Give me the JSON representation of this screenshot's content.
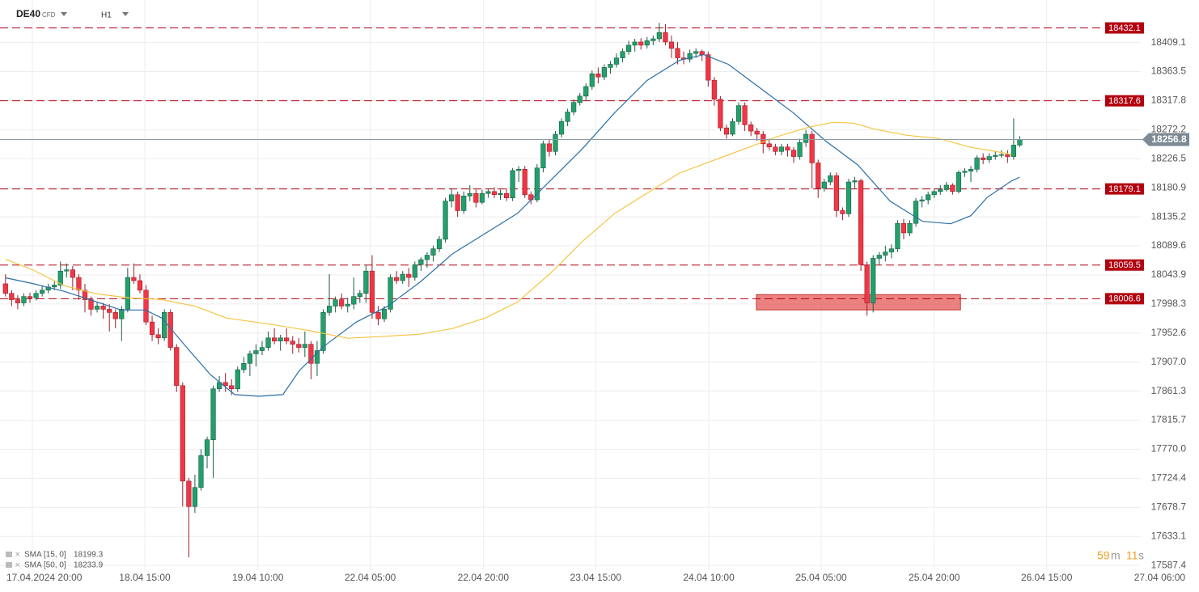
{
  "header": {
    "symbol": "DE40",
    "instrument": "CFD",
    "timeframe": "H1"
  },
  "timer": {
    "minutes": 59,
    "minutes_unit": "m",
    "seconds": 11,
    "seconds_unit": "s"
  },
  "chart_data": {
    "type": "candlestick",
    "up_color": "#22a06b",
    "down_color": "#f23645",
    "xlim": [
      -0.9,
      185.8
    ],
    "xticks": [
      {
        "value": 4.4,
        "label": "17.04.2024 20:00"
      },
      {
        "value": 22.8,
        "label": "18.04 15:00"
      },
      {
        "value": 41.3,
        "label": "19.04 10:00"
      },
      {
        "value": 59.7,
        "label": "22.04 05:00"
      },
      {
        "value": 78.2,
        "label": "22.04 20:00"
      },
      {
        "value": 96.6,
        "label": "23.04 15:00"
      },
      {
        "value": 115.1,
        "label": "24.04 10:00"
      },
      {
        "value": 133.5,
        "label": "25.04 05:00"
      },
      {
        "value": 152.0,
        "label": "25.04 20:00"
      },
      {
        "value": 170.4,
        "label": "26.04 15:00"
      },
      {
        "value": 188.9,
        "label": "27.04 06:00"
      }
    ],
    "ylim": [
      17580,
      18476
    ],
    "yticks": [
      18409.1,
      18363.5,
      18317.8,
      18272.2,
      18226.5,
      18180.9,
      18135.2,
      18089.6,
      18043.9,
      17998.3,
      17952.6,
      {
        "value": 17907,
        "label": "17907.0"
      },
      17861.3,
      17815.7,
      {
        "value": 17770,
        "label": "17770.0"
      },
      17724.4,
      17678.7,
      17633.1,
      17587.4
    ],
    "grid": true,
    "levels": [
      18432.1,
      18317.6,
      18179.1,
      18059.5,
      18006.6
    ],
    "level_color": "#b3000f",
    "last_price": 18256.8,
    "zone": {
      "x": [
        122.9,
        156.3
      ],
      "y": [
        17989,
        18013
      ]
    },
    "candles": [
      [
        18030,
        18045,
        18010,
        18015
      ],
      [
        18015,
        18020,
        17995,
        18005
      ],
      [
        18005,
        18012,
        17990,
        18000
      ],
      [
        18000,
        18015,
        17995,
        18010
      ],
      [
        18010,
        18016,
        18000,
        18008
      ],
      [
        18008,
        18020,
        18004,
        18015
      ],
      [
        18015,
        18026,
        18010,
        18020
      ],
      [
        18020,
        18030,
        18015,
        18025
      ],
      [
        18025,
        18034,
        18020,
        18028
      ],
      [
        18028,
        18065,
        18022,
        18050
      ],
      [
        18050,
        18062,
        18040,
        18052
      ],
      [
        18052,
        18058,
        18020,
        18040
      ],
      [
        18040,
        18045,
        18005,
        18020
      ],
      [
        18020,
        18030,
        17985,
        18005
      ],
      [
        18005,
        18010,
        17980,
        17990
      ],
      [
        17990,
        18002,
        17985,
        17995
      ],
      [
        17995,
        18000,
        17975,
        17990
      ],
      [
        17990,
        17998,
        17955,
        17985
      ],
      [
        17985,
        17990,
        17960,
        17975
      ],
      [
        17975,
        17995,
        17940,
        17990
      ],
      [
        17990,
        18055,
        17985,
        18040
      ],
      [
        18040,
        18062,
        18030,
        18035
      ],
      [
        18035,
        18045,
        18015,
        18020
      ],
      [
        18020,
        18028,
        17965,
        17970
      ],
      [
        17970,
        17980,
        17940,
        17950
      ],
      [
        17950,
        17960,
        17935,
        17945
      ],
      [
        17945,
        17990,
        17940,
        17985
      ],
      [
        17985,
        17990,
        17925,
        17930
      ],
      [
        17930,
        17935,
        17860,
        17870
      ],
      [
        17870,
        17875,
        17680,
        17720
      ],
      [
        17720,
        17725,
        17600,
        17680
      ],
      [
        17680,
        17730,
        17670,
        17710
      ],
      [
        17710,
        17770,
        17705,
        17760
      ],
      [
        17760,
        17790,
        17740,
        17785
      ],
      [
        17785,
        17870,
        17725,
        17865
      ],
      [
        17865,
        17885,
        17860,
        17875
      ],
      [
        17875,
        17890,
        17860,
        17870
      ],
      [
        17870,
        17880,
        17855,
        17865
      ],
      [
        17865,
        17900,
        17860,
        17895
      ],
      [
        17895,
        17915,
        17890,
        17905
      ],
      [
        17905,
        17925,
        17885,
        17920
      ],
      [
        17920,
        17935,
        17900,
        17925
      ],
      [
        17925,
        17940,
        17918,
        17930
      ],
      [
        17930,
        17955,
        17925,
        17945
      ],
      [
        17945,
        17960,
        17935,
        17940
      ],
      [
        17940,
        17950,
        17925,
        17945
      ],
      [
        17945,
        17960,
        17935,
        17940
      ],
      [
        17940,
        17948,
        17920,
        17935
      ],
      [
        17935,
        17945,
        17922,
        17930
      ],
      [
        17930,
        17955,
        17915,
        17935
      ],
      [
        17935,
        17940,
        17880,
        17905
      ],
      [
        17905,
        17940,
        17885,
        17925
      ],
      [
        17925,
        17990,
        17920,
        17985
      ],
      [
        17985,
        18045,
        17980,
        17995
      ],
      [
        17995,
        18010,
        17985,
        18005
      ],
      [
        18005,
        18015,
        17990,
        17995
      ],
      [
        17995,
        18008,
        17985,
        17998
      ],
      [
        17998,
        18040,
        17990,
        18010
      ],
      [
        18010,
        18020,
        18000,
        18015
      ],
      [
        18015,
        18060,
        18000,
        18050
      ],
      [
        18050,
        18075,
        17975,
        17985
      ],
      [
        17985,
        17995,
        17965,
        17975
      ],
      [
        17975,
        17995,
        17970,
        17990
      ],
      [
        17990,
        18045,
        17985,
        18040
      ],
      [
        18040,
        18050,
        18030,
        18035
      ],
      [
        18035,
        18050,
        18030,
        18045
      ],
      [
        18045,
        18055,
        18025,
        18040
      ],
      [
        18040,
        18065,
        18035,
        18060
      ],
      [
        18060,
        18072,
        18050,
        18068
      ],
      [
        18068,
        18080,
        18055,
        18075
      ],
      [
        18075,
        18090,
        18065,
        18085
      ],
      [
        18085,
        18105,
        18080,
        18100
      ],
      [
        18100,
        18165,
        18095,
        18160
      ],
      [
        18160,
        18180,
        18150,
        18170
      ],
      [
        18170,
        18175,
        18135,
        18145
      ],
      [
        18145,
        18175,
        18140,
        18168
      ],
      [
        18168,
        18185,
        18160,
        18172
      ],
      [
        18172,
        18178,
        18150,
        18158
      ],
      [
        18158,
        18178,
        18155,
        18172
      ],
      [
        18172,
        18180,
        18165,
        18175
      ],
      [
        18175,
        18182,
        18165,
        18170
      ],
      [
        18170,
        18178,
        18162,
        18172
      ],
      [
        18172,
        18180,
        18160,
        18165
      ],
      [
        18165,
        18212,
        18160,
        18208
      ],
      [
        18208,
        18215,
        18190,
        18210
      ],
      [
        18210,
        18215,
        18165,
        18170
      ],
      [
        18170,
        18175,
        18155,
        18162
      ],
      [
        18162,
        18218,
        18158,
        18212
      ],
      [
        18212,
        18255,
        18205,
        18250
      ],
      [
        18250,
        18258,
        18230,
        18238
      ],
      [
        18238,
        18270,
        18232,
        18265
      ],
      [
        18265,
        18290,
        18260,
        18285
      ],
      [
        18285,
        18305,
        18278,
        18300
      ],
      [
        18300,
        18320,
        18295,
        18315
      ],
      [
        18315,
        18330,
        18310,
        18325
      ],
      [
        18325,
        18345,
        18318,
        18340
      ],
      [
        18340,
        18365,
        18335,
        18360
      ],
      [
        18360,
        18370,
        18345,
        18355
      ],
      [
        18355,
        18375,
        18350,
        18370
      ],
      [
        18370,
        18380,
        18360,
        18375
      ],
      [
        18375,
        18392,
        18370,
        18385
      ],
      [
        18385,
        18400,
        18378,
        18395
      ],
      [
        18395,
        18412,
        18390,
        18405
      ],
      [
        18405,
        18415,
        18395,
        18410
      ],
      [
        18410,
        18416,
        18398,
        18405
      ],
      [
        18405,
        18418,
        18400,
        18412
      ],
      [
        18412,
        18420,
        18405,
        18415
      ],
      [
        18415,
        18440,
        18410,
        18425
      ],
      [
        18425,
        18438,
        18405,
        18410
      ],
      [
        18410,
        18420,
        18385,
        18400
      ],
      [
        18400,
        18410,
        18375,
        18385
      ],
      [
        18385,
        18395,
        18375,
        18383
      ],
      [
        18383,
        18398,
        18378,
        18392
      ],
      [
        18392,
        18400,
        18385,
        18395
      ],
      [
        18395,
        18398,
        18380,
        18390
      ],
      [
        18390,
        18395,
        18340,
        18350
      ],
      [
        18350,
        18355,
        18310,
        18320
      ],
      [
        18320,
        18325,
        18270,
        18275
      ],
      [
        18275,
        18280,
        18258,
        18265
      ],
      [
        18265,
        18290,
        18262,
        18285
      ],
      [
        18285,
        18315,
        18280,
        18310
      ],
      [
        18310,
        18315,
        18270,
        18280
      ],
      [
        18280,
        18285,
        18262,
        18270
      ],
      [
        18270,
        18275,
        18255,
        18265
      ],
      [
        18265,
        18270,
        18235,
        18250
      ],
      [
        18250,
        18258,
        18240,
        18245
      ],
      [
        18245,
        18250,
        18232,
        18238
      ],
      [
        18238,
        18250,
        18232,
        18245
      ],
      [
        18245,
        18250,
        18230,
        18240
      ],
      [
        18240,
        18245,
        18220,
        18230
      ],
      [
        18230,
        18258,
        18225,
        18252
      ],
      [
        18252,
        18272,
        18245,
        18265
      ],
      [
        18265,
        18270,
        18180,
        18220
      ],
      [
        18220,
        18225,
        18165,
        18180
      ],
      [
        18180,
        18195,
        18175,
        18190
      ],
      [
        18190,
        18205,
        18185,
        18200
      ],
      [
        18200,
        18205,
        18135,
        18145
      ],
      [
        18145,
        18150,
        18130,
        18140
      ],
      [
        18140,
        18195,
        18135,
        18190
      ],
      [
        18190,
        18198,
        18180,
        18192
      ],
      [
        18192,
        18195,
        18050,
        18060
      ],
      [
        18060,
        18065,
        17980,
        18000
      ],
      [
        18000,
        18075,
        17985,
        18070
      ],
      [
        18070,
        18080,
        18060,
        18075
      ],
      [
        18075,
        18090,
        18065,
        18080
      ],
      [
        18080,
        18092,
        18070,
        18085
      ],
      [
        18085,
        18130,
        18080,
        18125
      ],
      [
        18125,
        18132,
        18100,
        18110
      ],
      [
        18110,
        18130,
        18105,
        18125
      ],
      [
        18125,
        18165,
        18120,
        18160
      ],
      [
        18160,
        18168,
        18150,
        18162
      ],
      [
        18162,
        18175,
        18155,
        18170
      ],
      [
        18170,
        18180,
        18165,
        18175
      ],
      [
        18175,
        18185,
        18170,
        18178
      ],
      [
        18178,
        18190,
        18175,
        18185
      ],
      [
        18185,
        18188,
        18170,
        18175
      ],
      [
        18175,
        18208,
        18172,
        18205
      ],
      [
        18205,
        18212,
        18198,
        18207
      ],
      [
        18207,
        18215,
        18190,
        18210
      ],
      [
        18210,
        18232,
        18205,
        18228
      ],
      [
        18228,
        18235,
        18218,
        18225
      ],
      [
        18225,
        18235,
        18220,
        18230
      ],
      [
        18230,
        18238,
        18225,
        18232
      ],
      [
        18232,
        18240,
        18228,
        18233
      ],
      [
        18233,
        18240,
        18220,
        18230
      ],
      [
        18230,
        18290,
        18225,
        18248
      ],
      [
        18248,
        18262,
        18245,
        18256.8
      ]
    ],
    "series": [
      {
        "name": "SMA [15, 0]",
        "last_value": 18199.3,
        "color": "#2b6fa8",
        "x": [
          0,
          4.4,
          9.7,
          15.0,
          18.9,
          22.9,
          25.6,
          29.5,
          33.5,
          37.5,
          41.5,
          45.4,
          48.1,
          52.1,
          57.4,
          62.6,
          67.9,
          73.2,
          78.5,
          83.8,
          89.1,
          94.4,
          99.7,
          105.0,
          110.3,
          114.3,
          118.3,
          123.6,
          128.9,
          134.2,
          139.5,
          144.8,
          150.1,
          154.7,
          158.0,
          160.7,
          164.6,
          166.0
        ],
        "values": [
          18039.4,
          18030.5,
          18017.9,
          18001.4,
          17988.8,
          17988.8,
          17976.1,
          17931.8,
          17887.5,
          17855.9,
          17853.3,
          17855.9,
          17893.8,
          17931.8,
          17969.8,
          17995.1,
          18033.1,
          18077.4,
          18109.1,
          18140.7,
          18191.5,
          18241.9,
          18299.0,
          18349.6,
          18381.2,
          18390.1,
          18374.9,
          18336.9,
          18299.0,
          18254.7,
          18216.7,
          18159.7,
          18128.1,
          18124.3,
          18137.0,
          18166.0,
          18191.5,
          18197.7
        ]
      },
      {
        "name": "SMA [50, 0]",
        "last_value": 18233.9,
        "color": "#f5c542",
        "x": [
          0,
          4.4,
          9.7,
          15.0,
          20.3,
          25.6,
          30.9,
          36.2,
          42.8,
          49.4,
          56.0,
          61.3,
          67.9,
          73.2,
          78.5,
          83.8,
          89.1,
          94.4,
          99.7,
          105.0,
          110.3,
          115.6,
          120.9,
          126.2,
          131.5,
          135.5,
          138.8,
          142.1,
          147.4,
          152.7,
          158.0,
          162.0,
          164.6
        ],
        "values": [
          18068.5,
          18052.1,
          18026.8,
          18014.1,
          18007.8,
          18005.2,
          17995.1,
          17976.1,
          17967.2,
          17957.1,
          17944.5,
          17947.0,
          17950.8,
          17959.7,
          17976.1,
          18001.4,
          18045.8,
          18096.4,
          18140.7,
          18172.4,
          18204.0,
          18223.0,
          18241.9,
          18261.0,
          18276.2,
          18283.8,
          18282.5,
          18273.6,
          18263.5,
          18258.4,
          18244.5,
          18238.2,
          18233.1
        ]
      }
    ]
  }
}
